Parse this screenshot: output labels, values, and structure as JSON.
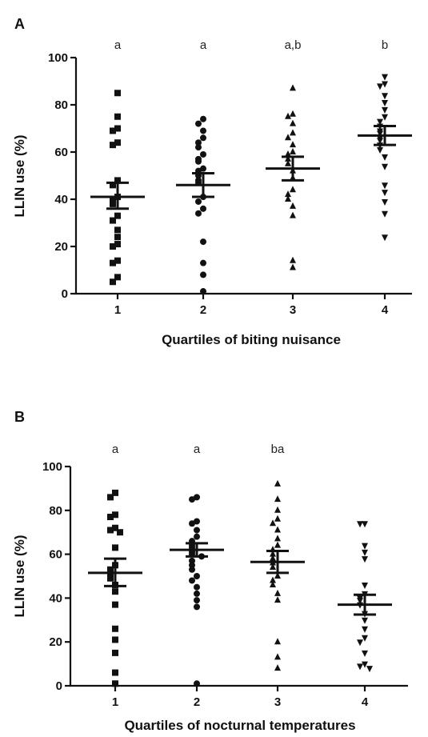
{
  "chart_data": [
    {
      "panel": "A",
      "type": "scatter",
      "xlabel": "Quartiles of biting nuisance",
      "ylabel": "LLIN use (%)",
      "categories": [
        "1",
        "2",
        "3",
        "4"
      ],
      "yticks": [
        0,
        20,
        40,
        60,
        80,
        100
      ],
      "ylim": [
        0,
        100
      ],
      "significance": [
        "a",
        "a",
        "a,b",
        "b"
      ],
      "marker_shapes": [
        "square",
        "circle",
        "triangle-up",
        "triangle-down"
      ],
      "means": [
        41,
        46,
        53,
        67
      ],
      "sem_bars": [
        [
          36,
          47
        ],
        [
          41,
          51
        ],
        [
          48,
          58
        ],
        [
          63,
          71
        ]
      ],
      "points": [
        [
          85,
          75,
          70,
          69,
          64,
          63,
          48,
          46,
          41,
          40,
          38,
          33,
          31,
          27,
          24,
          21,
          20,
          14,
          13,
          7,
          5
        ],
        [
          74,
          72,
          69,
          66,
          64,
          62,
          59,
          57,
          56,
          53,
          52,
          50,
          48,
          47,
          41,
          39,
          36,
          34,
          22,
          13,
          8,
          1
        ],
        [
          87,
          76,
          75,
          72,
          68,
          66,
          63,
          60,
          59,
          57,
          55,
          52,
          49,
          44,
          42,
          40,
          37,
          33,
          14,
          11
        ],
        [
          92,
          89,
          88,
          84,
          81,
          78,
          75,
          73,
          71,
          69,
          68,
          66,
          65,
          63,
          61,
          58,
          54,
          46,
          43,
          39,
          34,
          24
        ]
      ]
    },
    {
      "panel": "B",
      "type": "scatter",
      "xlabel": "Quartiles of nocturnal temperatures",
      "ylabel": "LLIN use (%)",
      "categories": [
        "1",
        "2",
        "3",
        "4"
      ],
      "yticks": [
        0,
        20,
        40,
        60,
        80,
        100
      ],
      "ylim": [
        0,
        100
      ],
      "significance": [
        "a",
        "a",
        "ba",
        ""
      ],
      "marker_shapes": [
        "square",
        "circle",
        "triangle-up",
        "triangle-down"
      ],
      "means": [
        51.5,
        62,
        56.5,
        37
      ],
      "sem_bars": [
        [
          45.5,
          58
        ],
        [
          59,
          65
        ],
        [
          51.5,
          61.5
        ],
        [
          32.5,
          41.5
        ]
      ],
      "points": [
        [
          88,
          86,
          78,
          77,
          72,
          71,
          70,
          63,
          55,
          53,
          51,
          49,
          46,
          43,
          37,
          26,
          21,
          15,
          6,
          1
        ],
        [
          86,
          85,
          75,
          74,
          71,
          68,
          66,
          64,
          63,
          61,
          60,
          59,
          57,
          55,
          53,
          50,
          48,
          45,
          42,
          39,
          36,
          1
        ],
        [
          92,
          85,
          80,
          76,
          74,
          71,
          67,
          64,
          62,
          60,
          58,
          56,
          54,
          50,
          48,
          46,
          42,
          39,
          20,
          13,
          8
        ],
        [
          74,
          74,
          64,
          61,
          58,
          46,
          42,
          40,
          39,
          37,
          33,
          30,
          26,
          22,
          20,
          15,
          10,
          9,
          8
        ]
      ]
    }
  ]
}
